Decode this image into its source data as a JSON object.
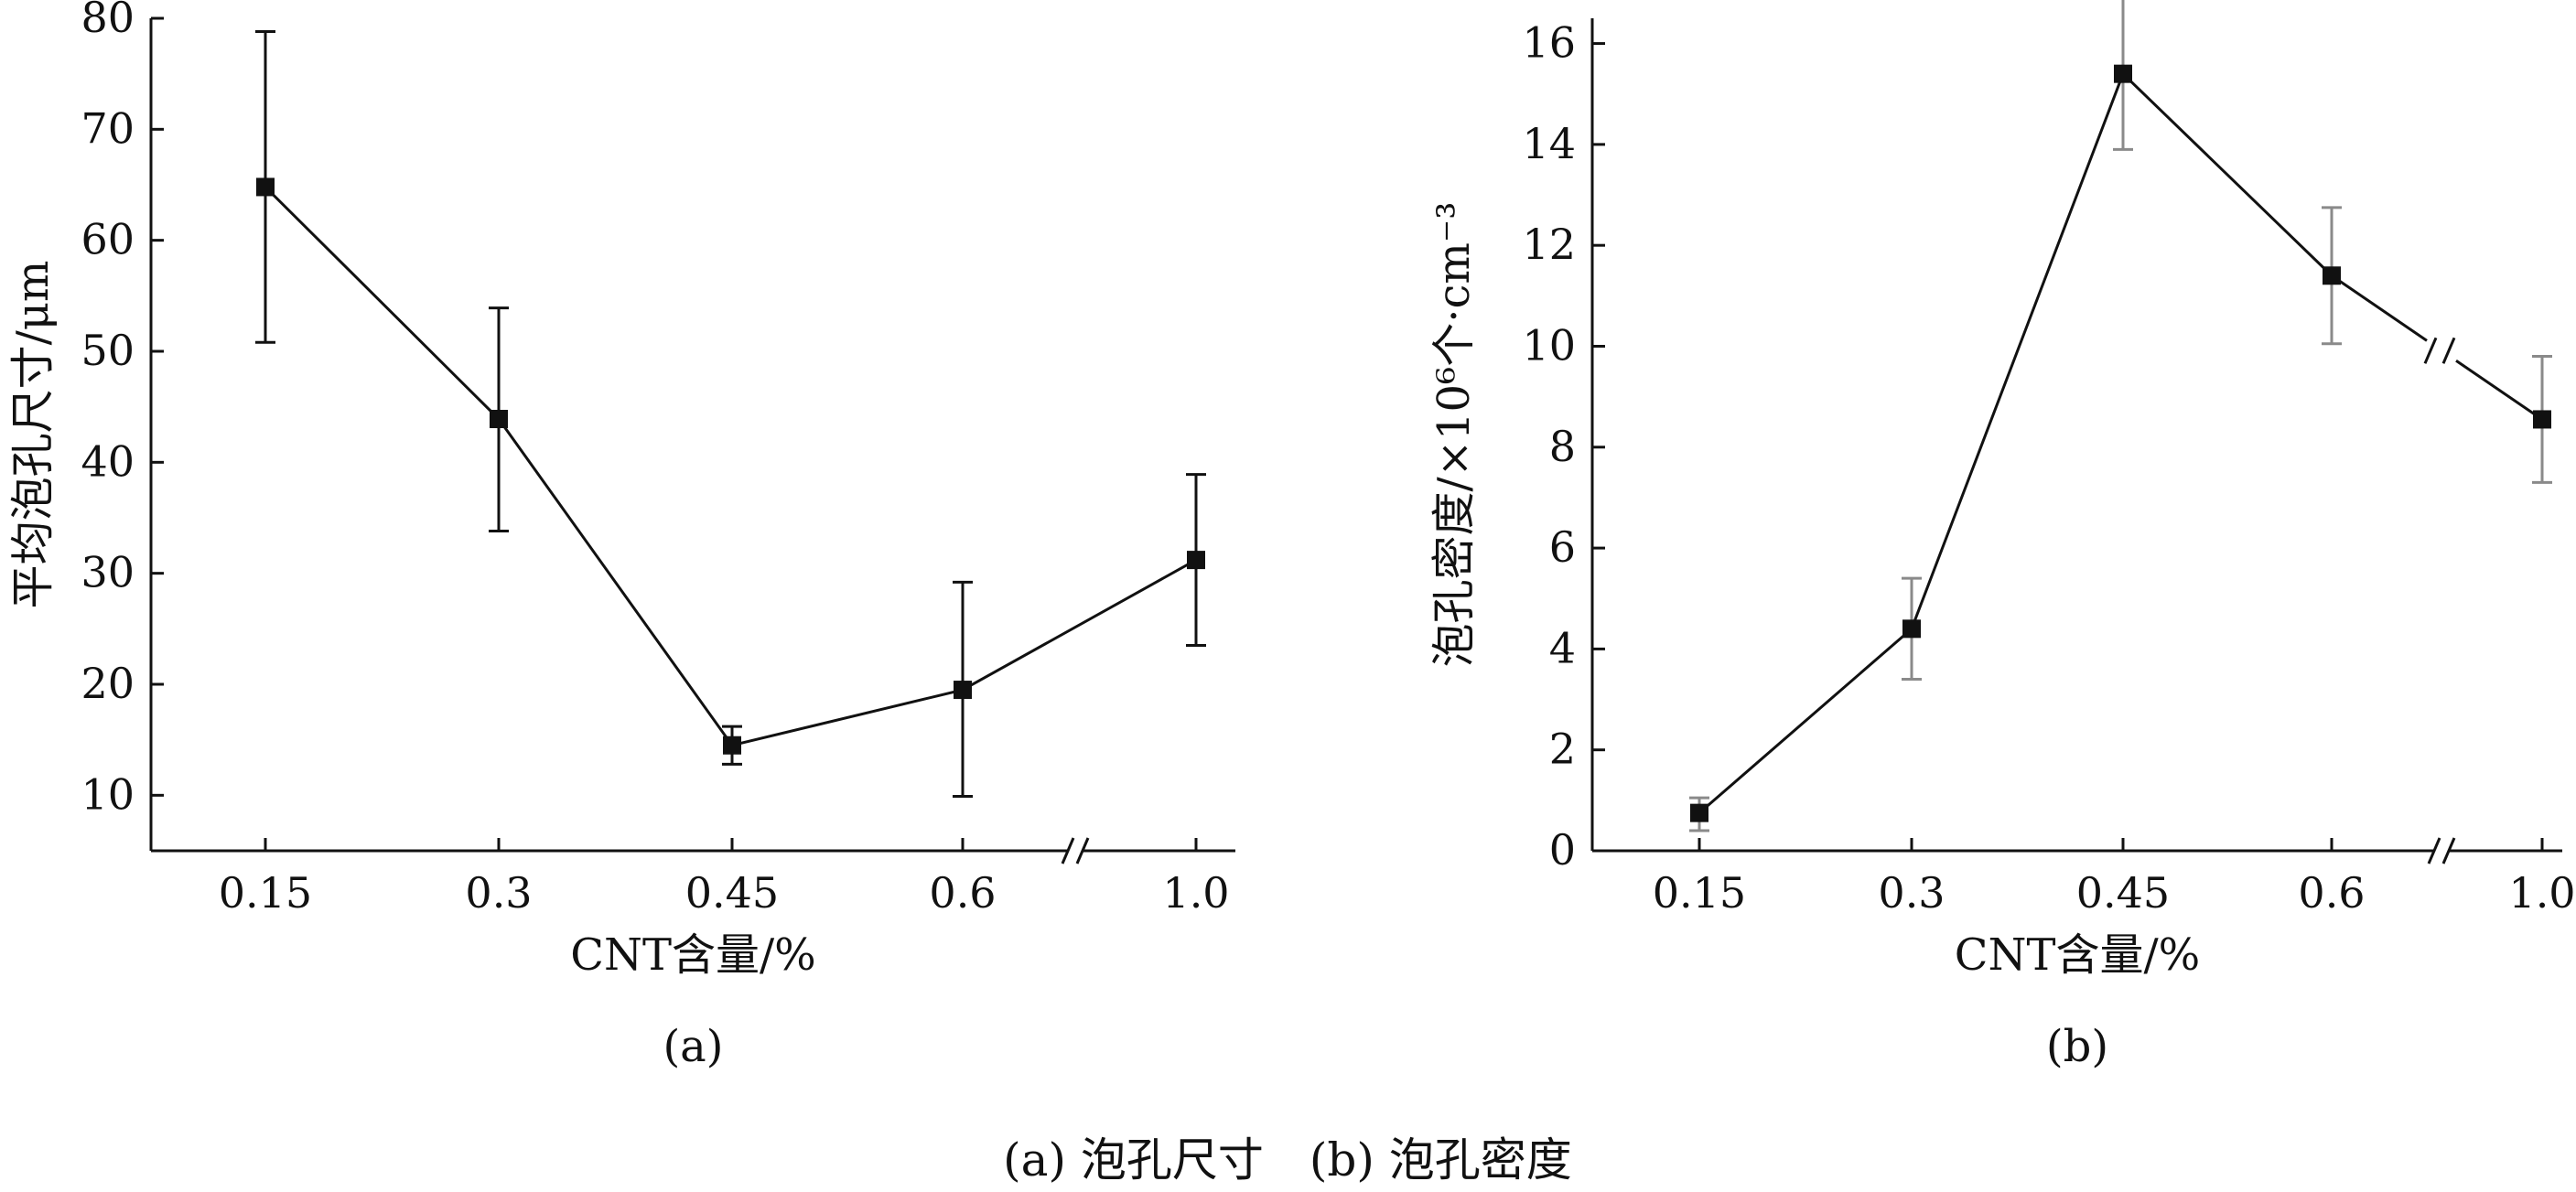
{
  "caption": "(a) 泡孔尺寸　(b) 泡孔密度",
  "chart_data": [
    {
      "id": "a",
      "type": "line",
      "subplot_label": "(a)",
      "xlabel": "CNT含量/%",
      "ylabel": "平均泡孔尺寸/μm",
      "categories": [
        "0.15",
        "0.3",
        "0.45",
        "0.6",
        "1.0"
      ],
      "x_axis_break": "between 0.6 and 1.0",
      "ylim": [
        5,
        80
      ],
      "yticks": [
        "10",
        "20",
        "30",
        "40",
        "50",
        "60",
        "70",
        "80"
      ],
      "series": [
        {
          "values": [
            64.8,
            43.9,
            14.5,
            19.5,
            31.2
          ],
          "err_low": [
            50.8,
            33.8,
            12.8,
            9.9,
            23.5
          ],
          "err_high": [
            78.8,
            53.9,
            16.2,
            29.2,
            38.9
          ]
        }
      ],
      "marker": "square",
      "color": "#111111"
    },
    {
      "id": "b",
      "type": "line",
      "subplot_label": "(b)",
      "xlabel": "CNT含量/%",
      "ylabel": "泡孔密度/×10⁶个·cm⁻³",
      "categories": [
        "0.15",
        "0.3",
        "0.45",
        "0.6",
        "1.0"
      ],
      "x_axis_break": "between 0.6 and 1.0",
      "ylim": [
        0,
        16.5
      ],
      "yticks": [
        "0",
        "2",
        "4",
        "6",
        "8",
        "10",
        "12",
        "14",
        "16"
      ],
      "series": [
        {
          "values": [
            0.75,
            4.4,
            15.4,
            11.4,
            8.55
          ],
          "err_low": [
            0.4,
            3.4,
            13.9,
            10.05,
            7.3
          ],
          "err_high": [
            1.05,
            5.4,
            16.9,
            12.75,
            9.8
          ]
        }
      ],
      "series_line_break": "between 0.6 and 1.0",
      "marker": "square",
      "color": "#111111",
      "error_bar_color": "#8a8a8a"
    }
  ]
}
